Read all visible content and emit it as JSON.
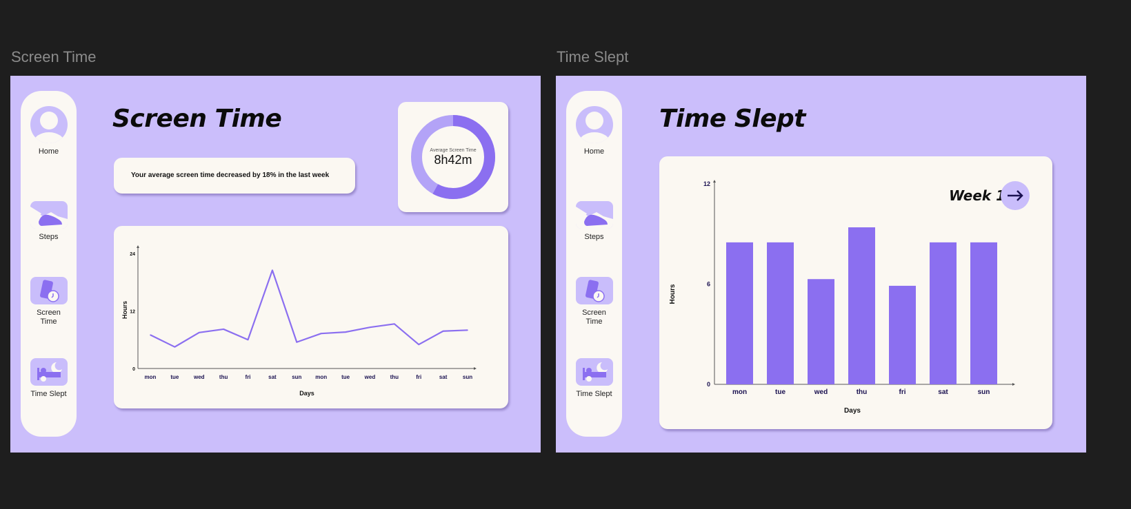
{
  "frames": {
    "screen_time": {
      "label": "Screen Time",
      "title": "Screen Time",
      "summary": "Your average screen time decreased by 18% in the last week",
      "donut": {
        "label": "Average Screen Time",
        "value": "8h42m",
        "fill_fraction": 0.58
      }
    },
    "time_slept": {
      "label": "Time Slept",
      "title": "Time Slept",
      "week_label": "Week 1"
    }
  },
  "nav": [
    {
      "label": "Home",
      "icon": "person-icon"
    },
    {
      "label": "Steps",
      "icon": "shoe-icon"
    },
    {
      "label": "Screen Time",
      "icon": "phone-clock-icon"
    },
    {
      "label": "Time Slept",
      "icon": "bed-moon-icon"
    }
  ],
  "colors": {
    "accent": "#8b6ff0",
    "background": "#cbbefb",
    "card": "#fbf8f2",
    "dark": "#1e1e1e"
  },
  "chart_data": [
    {
      "type": "line",
      "xlabel": "Days",
      "ylabel": "Hours",
      "ylim": [
        0,
        24
      ],
      "yticks": [
        "0",
        "12",
        "24"
      ],
      "categories": [
        "mon",
        "tue",
        "wed",
        "thu",
        "fri",
        "sat",
        "sun",
        "mon",
        "tue",
        "wed",
        "thu",
        "fri",
        "sat",
        "sun"
      ],
      "values": [
        7,
        4.5,
        7.5,
        8.2,
        6,
        20.5,
        5.5,
        7.3,
        7.6,
        8.6,
        9.3,
        5,
        7.8,
        8
      ],
      "grid": false
    },
    {
      "type": "bar",
      "xlabel": "Days",
      "ylabel": "Hours",
      "ylim": [
        0,
        12
      ],
      "yticks": [
        "0",
        "6",
        "12"
      ],
      "categories": [
        "mon",
        "tue",
        "wed",
        "thu",
        "fri",
        "sat",
        "sun"
      ],
      "values": [
        8.5,
        8.5,
        6.3,
        9.4,
        5.9,
        8.5,
        8.5
      ],
      "grid": false
    }
  ]
}
